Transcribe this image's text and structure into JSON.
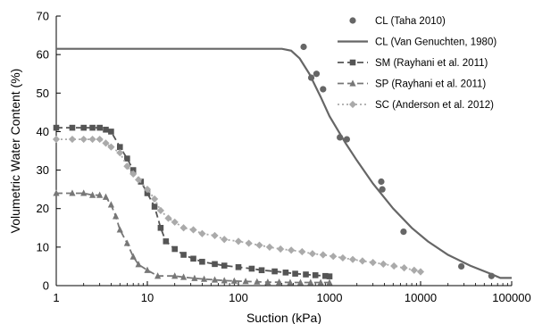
{
  "chart_data": {
    "type": "scatter",
    "xscale": "log",
    "xlim": [
      1,
      100000
    ],
    "ylim": [
      0,
      70
    ],
    "xlabel": "Suction (kPa)",
    "ylabel": "Volumetric Water Content (%)",
    "x_ticks": [
      1,
      10,
      100,
      1000,
      10000,
      100000
    ],
    "x_tick_labels": [
      "1",
      "10",
      "100",
      "1000",
      "10000",
      "100000"
    ],
    "y_ticks": [
      0,
      10,
      20,
      30,
      40,
      50,
      60,
      70
    ],
    "y_tick_labels": [
      "0",
      "10",
      "20",
      "30",
      "40",
      "50",
      "60",
      "70"
    ],
    "grid": false,
    "legend_position": "top-right",
    "series": [
      {
        "name": "CL (Taha 2010)",
        "style": "markers",
        "marker": "circle",
        "color": "#666666",
        "points": [
          [
            520,
            62
          ],
          [
            630,
            54
          ],
          [
            720,
            55
          ],
          [
            850,
            51
          ],
          [
            1300,
            38.5
          ],
          [
            1550,
            38
          ],
          [
            3700,
            27
          ],
          [
            3800,
            25
          ],
          [
            6500,
            14
          ],
          [
            28000,
            5
          ],
          [
            60000,
            2.5
          ]
        ]
      },
      {
        "name": "CL (Van Genuchten, 1980)",
        "style": "line",
        "color": "#666666",
        "points": [
          [
            1,
            61.5
          ],
          [
            100,
            61.5
          ],
          [
            300,
            61.5
          ],
          [
            380,
            61
          ],
          [
            470,
            59
          ],
          [
            600,
            55
          ],
          [
            800,
            49
          ],
          [
            1000,
            44
          ],
          [
            1500,
            37
          ],
          [
            2000,
            32.5
          ],
          [
            3000,
            26.5
          ],
          [
            5000,
            20
          ],
          [
            8000,
            15
          ],
          [
            12000,
            11.5
          ],
          [
            20000,
            8
          ],
          [
            35000,
            5.2
          ],
          [
            60000,
            3
          ],
          [
            75000,
            2
          ],
          [
            100000,
            2
          ]
        ]
      },
      {
        "name": "SM  (Rayhani et al. 2011)",
        "style": "dash-markers",
        "marker": "square",
        "color": "#555555",
        "points": [
          [
            1,
            41
          ],
          [
            1.5,
            41
          ],
          [
            2,
            41
          ],
          [
            2.5,
            41
          ],
          [
            3,
            41
          ],
          [
            3.5,
            40.5
          ],
          [
            4,
            40
          ],
          [
            5,
            36
          ],
          [
            6,
            33
          ],
          [
            7,
            30
          ],
          [
            8.5,
            27
          ],
          [
            10,
            24
          ],
          [
            12,
            20.5
          ],
          [
            14,
            15
          ],
          [
            16,
            11.5
          ],
          [
            20,
            9.5
          ],
          [
            25,
            8
          ],
          [
            32,
            7
          ],
          [
            40,
            6.2
          ],
          [
            55,
            5.6
          ],
          [
            70,
            5.2
          ],
          [
            100,
            4.8
          ],
          [
            140,
            4.4
          ],
          [
            180,
            4
          ],
          [
            250,
            3.7
          ],
          [
            330,
            3.4
          ],
          [
            420,
            3.1
          ],
          [
            550,
            2.9
          ],
          [
            700,
            2.7
          ],
          [
            900,
            2.5
          ],
          [
            1000,
            2.4
          ]
        ]
      },
      {
        "name": "SP  (Rayhani et al. 2011)",
        "style": "dash-markers",
        "marker": "triangle",
        "color": "#777777",
        "points": [
          [
            1,
            24
          ],
          [
            1.5,
            24
          ],
          [
            2,
            24
          ],
          [
            2.5,
            23.5
          ],
          [
            3,
            23.5
          ],
          [
            3.5,
            23
          ],
          [
            4,
            21
          ],
          [
            4.5,
            18
          ],
          [
            5,
            14.5
          ],
          [
            6,
            11
          ],
          [
            7,
            7.5
          ],
          [
            8,
            5.5
          ],
          [
            10,
            4
          ],
          [
            13,
            2.5
          ],
          [
            20,
            2.5
          ],
          [
            25,
            2.2
          ],
          [
            33,
            1.9
          ],
          [
            42,
            1.7
          ],
          [
            55,
            1.5
          ],
          [
            70,
            1.3
          ],
          [
            90,
            1.2
          ],
          [
            120,
            1.1
          ],
          [
            160,
            1
          ],
          [
            210,
            0.9
          ],
          [
            280,
            0.9
          ],
          [
            370,
            0.8
          ],
          [
            480,
            0.8
          ],
          [
            620,
            0.8
          ],
          [
            800,
            0.8
          ],
          [
            1000,
            0.8
          ]
        ]
      },
      {
        "name": "SC  (Anderson et al. 2012)",
        "style": "dot-markers",
        "marker": "diamond",
        "color": "#aaaaaa",
        "points": [
          [
            1,
            38
          ],
          [
            1.5,
            38
          ],
          [
            2,
            38
          ],
          [
            2.5,
            38
          ],
          [
            3,
            38
          ],
          [
            3.5,
            37
          ],
          [
            4,
            36
          ],
          [
            5,
            34.5
          ],
          [
            6,
            31
          ],
          [
            7,
            29
          ],
          [
            8,
            27.5
          ],
          [
            10,
            25
          ],
          [
            12,
            22.5
          ],
          [
            14,
            19.5
          ],
          [
            17,
            17.5
          ],
          [
            20,
            16.5
          ],
          [
            25,
            15
          ],
          [
            32,
            14.5
          ],
          [
            40,
            13.5
          ],
          [
            55,
            13
          ],
          [
            70,
            12
          ],
          [
            100,
            11.5
          ],
          [
            130,
            11
          ],
          [
            170,
            10.5
          ],
          [
            220,
            10
          ],
          [
            290,
            9.5
          ],
          [
            380,
            9.2
          ],
          [
            500,
            8.8
          ],
          [
            650,
            8.3
          ],
          [
            850,
            8
          ],
          [
            1100,
            7.6
          ],
          [
            1400,
            7.2
          ],
          [
            1800,
            6.8
          ],
          [
            2300,
            6.4
          ],
          [
            3000,
            6
          ],
          [
            3900,
            5.6
          ],
          [
            5100,
            5.1
          ],
          [
            6600,
            4.6
          ],
          [
            8500,
            4
          ],
          [
            10000,
            3.6
          ]
        ]
      }
    ]
  }
}
